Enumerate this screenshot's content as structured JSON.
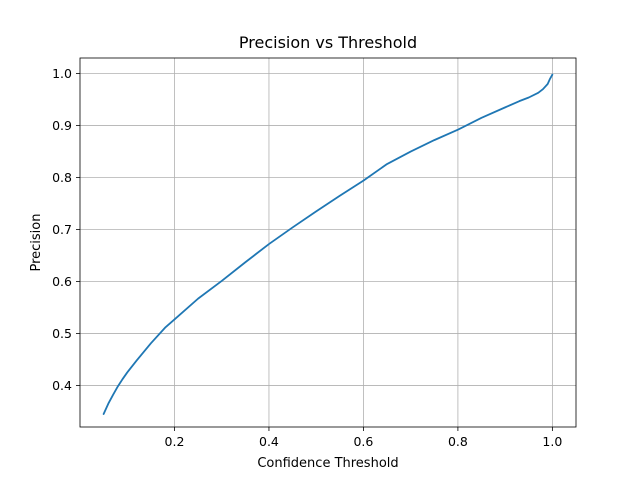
{
  "chart_data": {
    "type": "line",
    "title": "Precision vs Threshold",
    "xlabel": "Confidence Threshold",
    "ylabel": "Precision",
    "xlim": [
      0.0,
      1.05
    ],
    "ylim": [
      0.32,
      1.03
    ],
    "grid": true,
    "xticks": [
      0.2,
      0.4,
      0.6,
      0.8,
      1.0
    ],
    "xtick_labels": [
      "0.2",
      "0.4",
      "0.6",
      "0.8",
      "1.0"
    ],
    "yticks": [
      0.4,
      0.5,
      0.6,
      0.7,
      0.8,
      0.9,
      1.0
    ],
    "ytick_labels": [
      "0.4",
      "0.5",
      "0.6",
      "0.7",
      "0.8",
      "0.9",
      "1.0"
    ],
    "series": [
      {
        "color": "#1f77b4",
        "x": [
          0.05,
          0.06,
          0.07,
          0.08,
          0.09,
          0.1,
          0.12,
          0.15,
          0.18,
          0.2,
          0.25,
          0.3,
          0.35,
          0.4,
          0.45,
          0.5,
          0.55,
          0.6,
          0.65,
          0.7,
          0.75,
          0.8,
          0.85,
          0.9,
          0.93,
          0.95,
          0.97,
          0.98,
          0.99,
          0.995,
          1.0
        ],
        "y": [
          0.345,
          0.365,
          0.382,
          0.398,
          0.412,
          0.425,
          0.448,
          0.481,
          0.511,
          0.527,
          0.567,
          0.601,
          0.637,
          0.672,
          0.704,
          0.735,
          0.765,
          0.794,
          0.826,
          0.85,
          0.872,
          0.892,
          0.915,
          0.935,
          0.947,
          0.954,
          0.963,
          0.97,
          0.98,
          0.99,
          0.998
        ]
      }
    ]
  }
}
